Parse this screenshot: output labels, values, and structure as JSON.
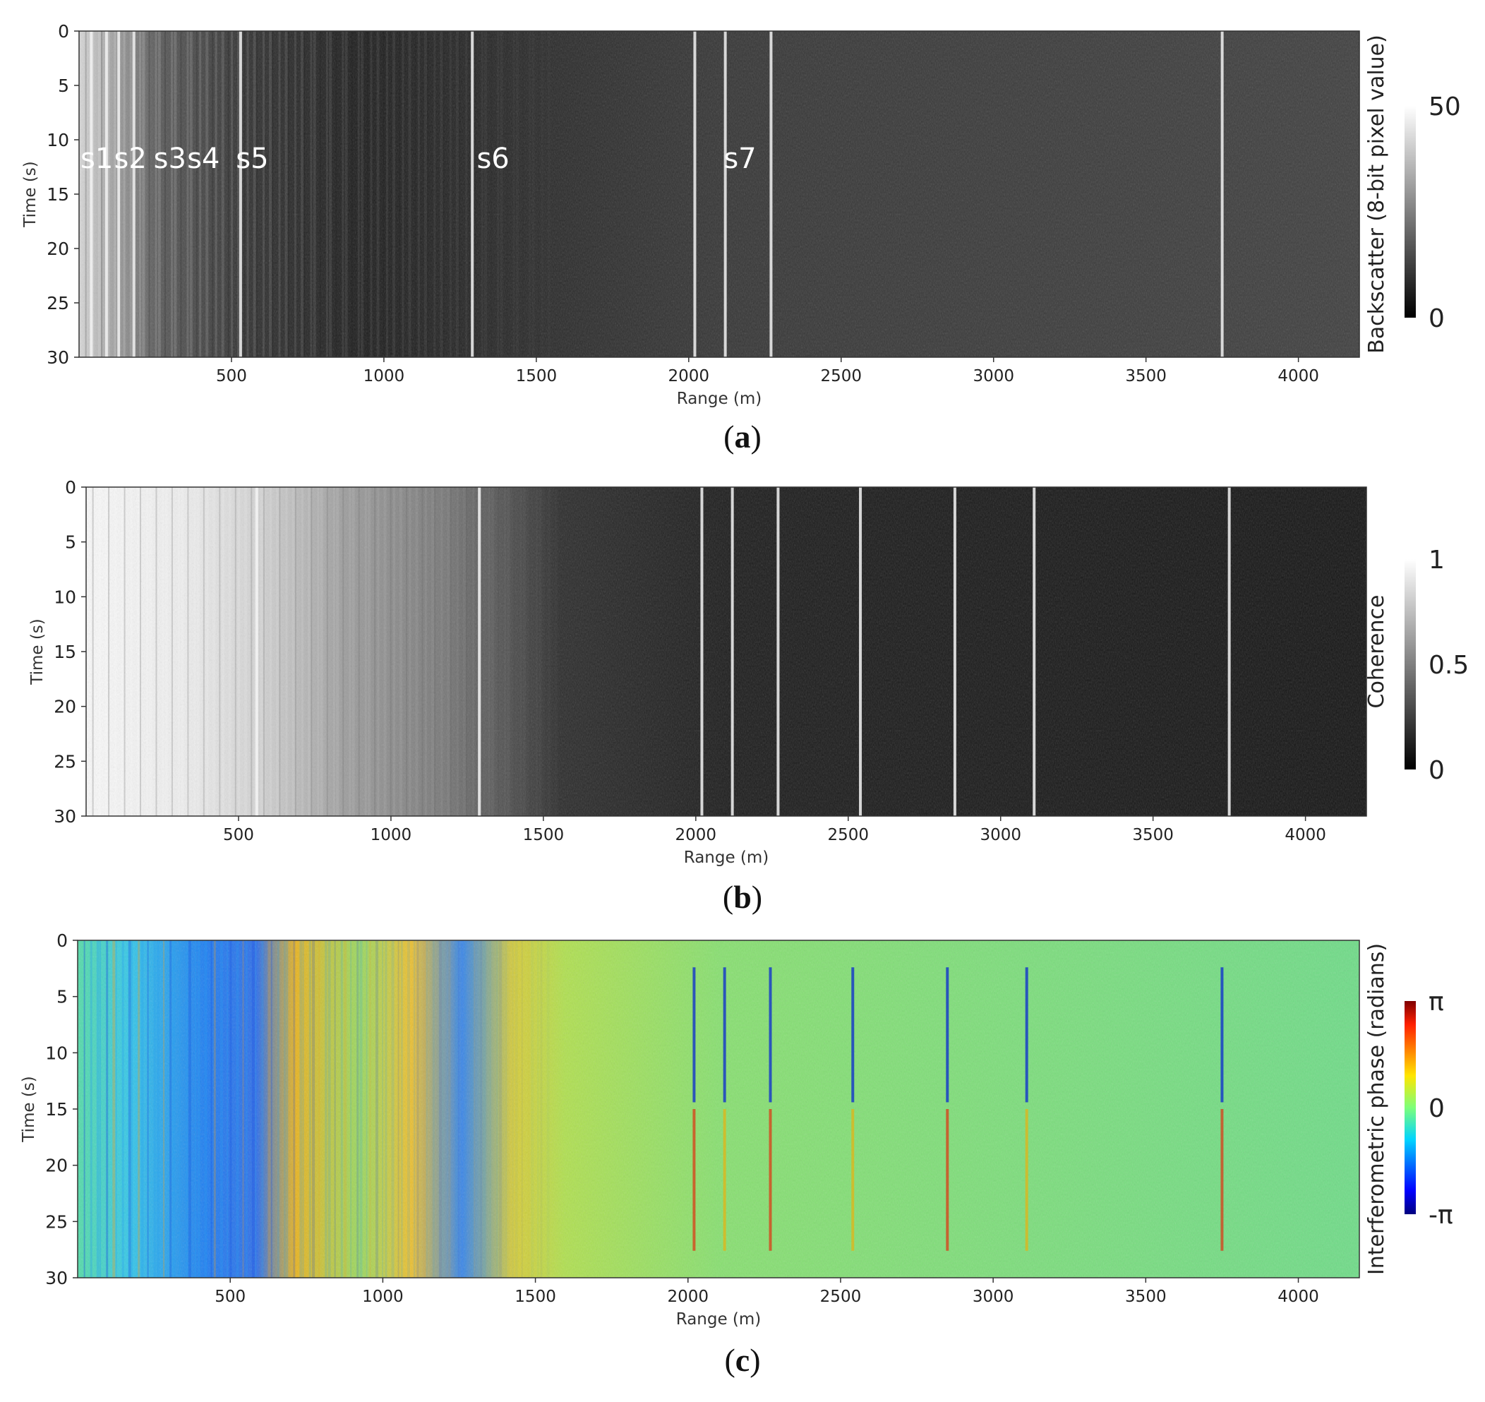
{
  "chart_data": [
    {
      "type": "heatmap",
      "panel_label": "a",
      "xlabel": "Range (m)",
      "ylabel": "Time (s)",
      "xlim": [
        0,
        4200
      ],
      "ylim": [
        30,
        0
      ],
      "x_ticks": [
        500,
        1000,
        1500,
        2000,
        2500,
        3000,
        3500,
        4000
      ],
      "y_ticks": [
        0,
        5,
        10,
        15,
        20,
        25,
        30
      ],
      "colorbar": {
        "label": "Backscatter (8-bit pixel value)",
        "colormap": "gray",
        "range": [
          0,
          50
        ],
        "ticks": [
          {
            "value": 0,
            "label": "0"
          },
          {
            "value": 50,
            "label": "50"
          }
        ]
      },
      "annotations": [
        {
          "text": "s1",
          "x": 0,
          "y": 11.7
        },
        {
          "text": "s2",
          "x": 110,
          "y": 11.7
        },
        {
          "text": "s3",
          "x": 240,
          "y": 11.7
        },
        {
          "text": "s4",
          "x": 350,
          "y": 11.7
        },
        {
          "text": "s5",
          "x": 510,
          "y": 11.7
        },
        {
          "text": "s6",
          "x": 1300,
          "y": 11.7
        },
        {
          "text": "s7",
          "x": 2110,
          "y": 11.7
        }
      ],
      "bright_lines_range_m": [
        40,
        90,
        130,
        180,
        530,
        1290,
        2020,
        2120,
        2270,
        3750
      ]
    },
    {
      "type": "heatmap",
      "panel_label": "b",
      "xlabel": "Range (m)",
      "ylabel": "Time (s)",
      "xlim": [
        0,
        4200
      ],
      "ylim": [
        30,
        0
      ],
      "x_ticks": [
        500,
        1000,
        1500,
        2000,
        2500,
        3000,
        3500,
        4000
      ],
      "y_ticks": [
        0,
        5,
        10,
        15,
        20,
        25,
        30
      ],
      "colorbar": {
        "label": "Coherence",
        "colormap": "gray",
        "range": [
          0,
          1
        ],
        "ticks": [
          {
            "value": 0,
            "label": "0"
          },
          {
            "value": 0.5,
            "label": "0.5"
          },
          {
            "value": 1,
            "label": "1"
          }
        ]
      },
      "bright_lines_range_m": [
        560,
        1290,
        2020,
        2120,
        2270,
        2540,
        2850,
        3110,
        3750
      ]
    },
    {
      "type": "heatmap",
      "panel_label": "c",
      "xlabel": "Range (m)",
      "ylabel": "Time (s)",
      "xlim": [
        0,
        4200
      ],
      "ylim": [
        30,
        0
      ],
      "x_ticks": [
        500,
        1000,
        1500,
        2000,
        2500,
        3000,
        3500,
        4000
      ],
      "y_ticks": [
        0,
        5,
        10,
        15,
        20,
        25,
        30
      ],
      "colorbar": {
        "label": "Interferometric phase (radians)",
        "colormap": "jet",
        "range": [
          -3.14159,
          3.14159
        ],
        "ticks": [
          {
            "value": -3.14159,
            "label": "-π"
          },
          {
            "value": 0,
            "label": "0"
          },
          {
            "value": 3.14159,
            "label": "π"
          }
        ]
      },
      "phase_lines_range_m": [
        2020,
        2120,
        2270,
        2540,
        2850,
        3110,
        3750
      ]
    }
  ],
  "colors": {
    "background": "#ffffff",
    "text": "#222222",
    "annotation": "#ffffff"
  }
}
